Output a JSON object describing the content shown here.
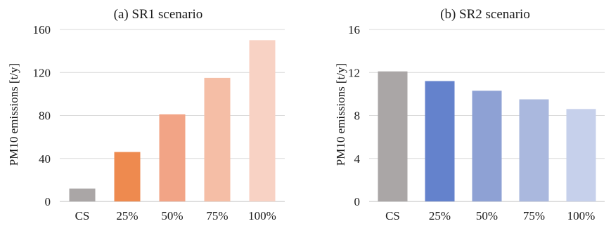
{
  "chart_data": [
    {
      "type": "bar",
      "title": "(a) SR1 scenario",
      "ylabel": "PM10 emissions [t/y]",
      "xlabel": "",
      "categories": [
        "CS",
        "25%",
        "50%",
        "75%",
        "100%"
      ],
      "values": [
        12,
        46,
        81,
        115,
        150
      ],
      "ylim": [
        0,
        160
      ],
      "yticks": [
        0,
        40,
        80,
        120,
        160
      ],
      "grid": true,
      "colors": [
        "#aaa6a6",
        "#ee8a4f",
        "#f2a486",
        "#f5bea6",
        "#f8d2c4"
      ]
    },
    {
      "type": "bar",
      "title": "(b) SR2 scenario",
      "ylabel": "PM10 emissions [t/y]",
      "xlabel": "",
      "categories": [
        "CS",
        "25%",
        "50%",
        "75%",
        "100%"
      ],
      "values": [
        12.1,
        11.2,
        10.3,
        9.5,
        8.6
      ],
      "ylim": [
        0,
        16
      ],
      "yticks": [
        0,
        4,
        8,
        12,
        16
      ],
      "grid": true,
      "colors": [
        "#aaa6a6",
        "#6482cc",
        "#8ea1d4",
        "#aab8de",
        "#c6d0eb"
      ]
    }
  ]
}
